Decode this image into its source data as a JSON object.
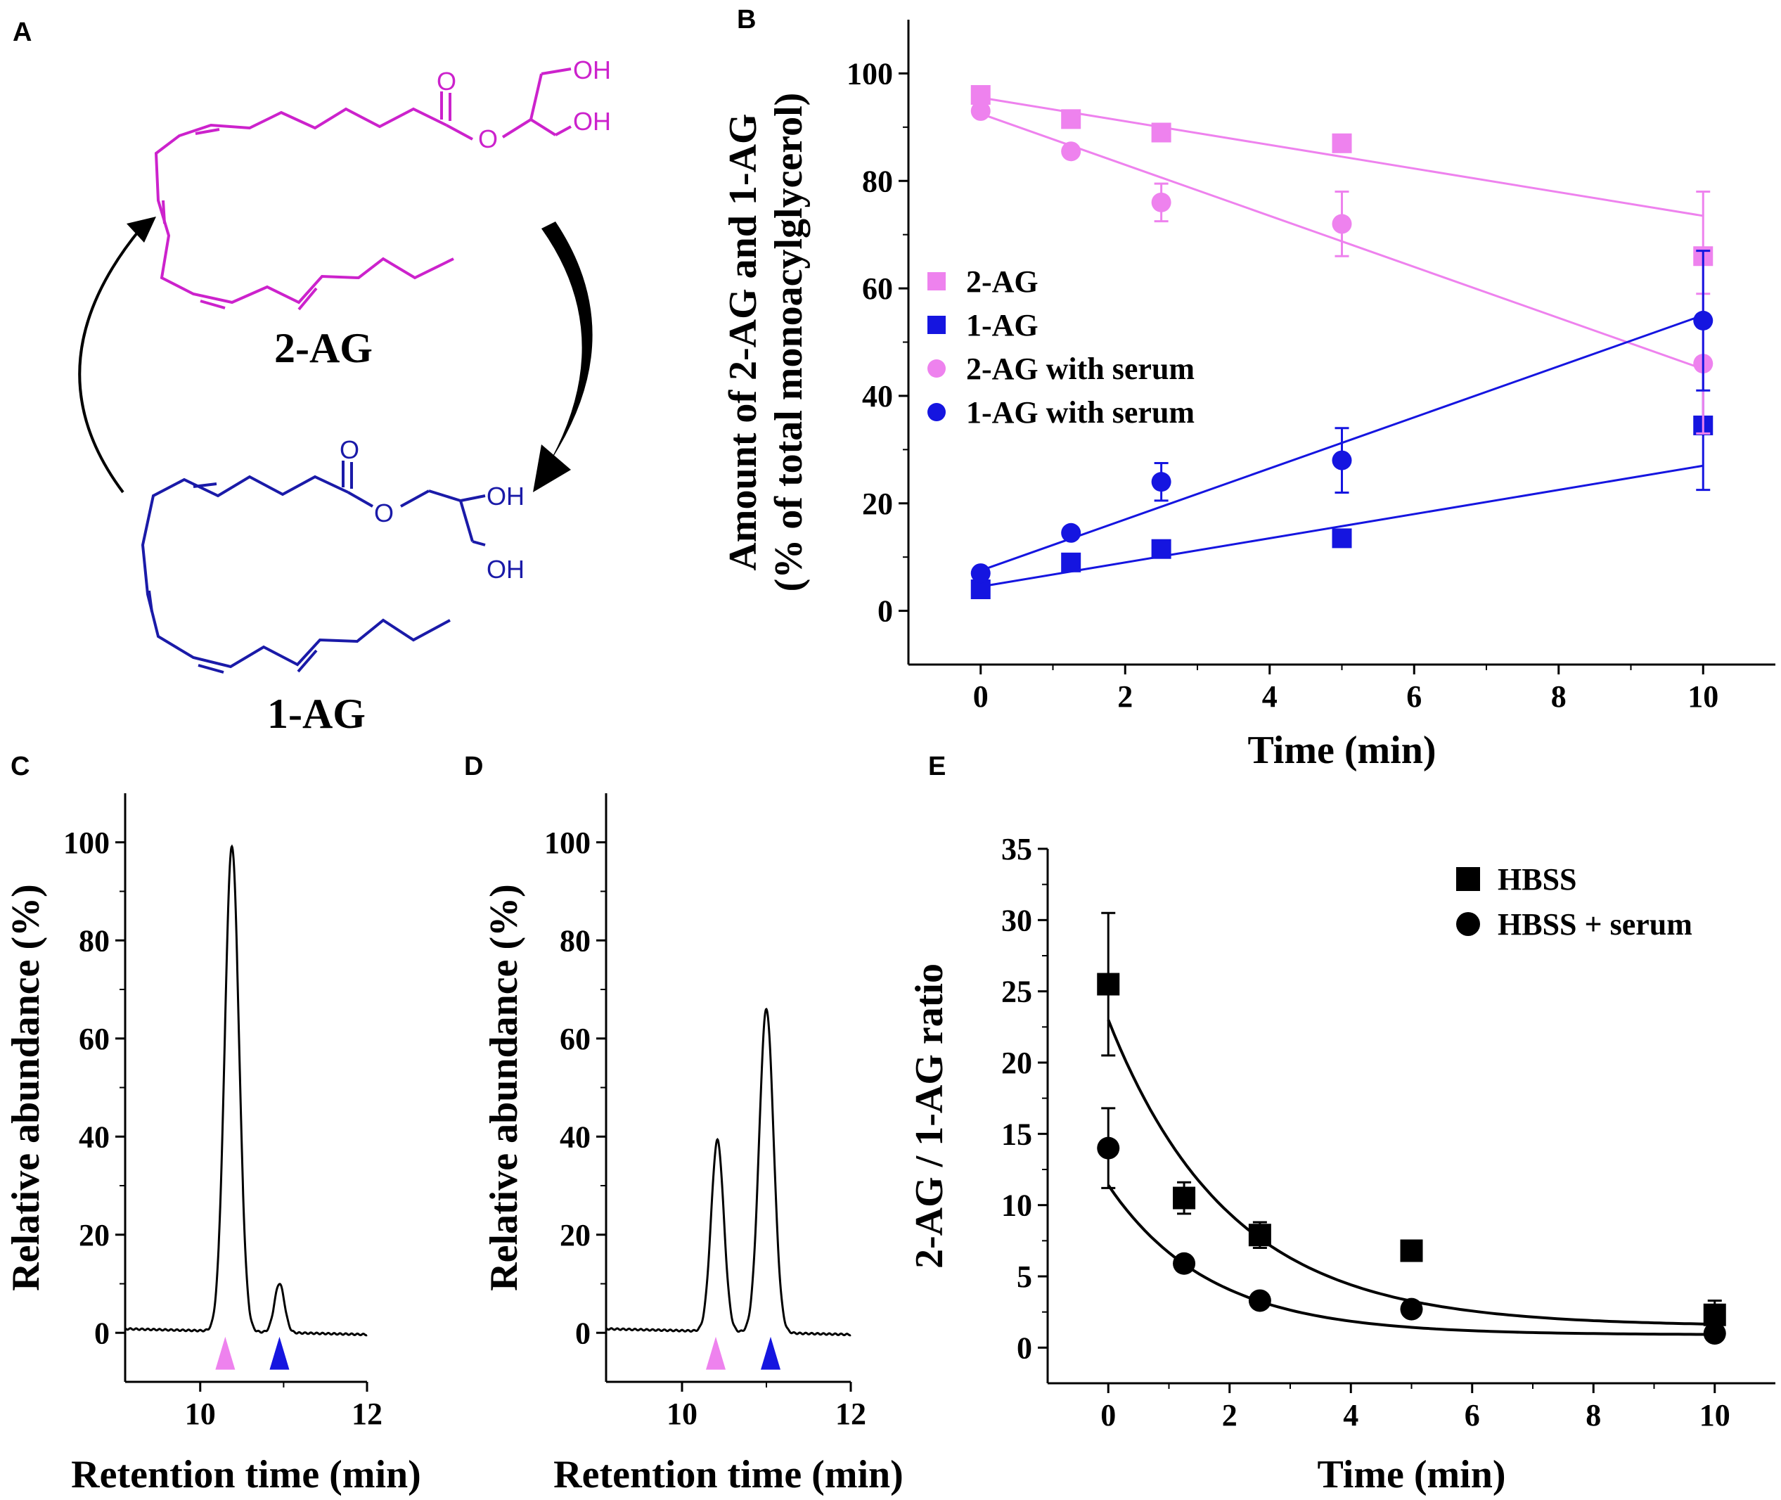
{
  "panels": {
    "A": {
      "letter": "A",
      "molecule_top": {
        "name": "2-AG",
        "color": "#cc22cc",
        "atoms": [
          "O",
          "O",
          "OH",
          "OH"
        ]
      },
      "molecule_bottom": {
        "name": "1-AG",
        "color": "#1a1aa8",
        "atoms": [
          "O",
          "O",
          "OH",
          "OH"
        ]
      }
    },
    "B": {
      "letter": "B"
    },
    "C": {
      "letter": "C"
    },
    "D": {
      "letter": "D"
    },
    "E": {
      "letter": "E"
    }
  },
  "chart_data": [
    {
      "id": "B",
      "type": "scatter",
      "xlabel": "Time (min)",
      "ylabel_lines": [
        "Amount of 2-AG and 1-AG",
        "(% of total monoacylglycerol)"
      ],
      "xlim": [
        -1,
        11
      ],
      "ylim": [
        -10,
        110
      ],
      "xticks": [
        0,
        2,
        4,
        6,
        8,
        10
      ],
      "yticks": [
        0,
        20,
        40,
        60,
        80,
        100
      ],
      "legend_position": "center-left",
      "series": [
        {
          "name": "2-AG",
          "marker": "square",
          "color": "#ee82ee",
          "x": [
            0,
            1.25,
            2.5,
            5,
            10
          ],
          "y": [
            96,
            91.5,
            89,
            87,
            66
          ],
          "err": [
            1,
            1,
            1,
            1,
            12
          ],
          "fit": [
            [
              0,
              95.5
            ],
            [
              10,
              73.5
            ]
          ]
        },
        {
          "name": "1-AG",
          "marker": "square",
          "color": "#1515e0",
          "x": [
            0,
            1.25,
            2.5,
            5,
            10
          ],
          "y": [
            4,
            9,
            11.5,
            13.5,
            34.5
          ],
          "err": [
            1,
            1,
            1,
            1,
            12
          ],
          "fit": [
            [
              0,
              4.5
            ],
            [
              10,
              27
            ]
          ]
        },
        {
          "name": "2-AG with serum",
          "marker": "circle",
          "color": "#ee82ee",
          "x": [
            0,
            1.25,
            2.5,
            5,
            10
          ],
          "y": [
            93,
            85.5,
            76,
            72,
            46
          ],
          "err": [
            1,
            1,
            3.5,
            6,
            13
          ],
          "fit": [
            [
              0,
              92.5
            ],
            [
              10,
              45
            ]
          ]
        },
        {
          "name": "1-AG with serum",
          "marker": "circle",
          "color": "#1515e0",
          "x": [
            0,
            1.25,
            2.5,
            5,
            10
          ],
          "y": [
            7,
            14.5,
            24,
            28,
            54
          ],
          "err": [
            1,
            1,
            3.5,
            6,
            13
          ],
          "fit": [
            [
              0,
              7.5
            ],
            [
              10,
              55
            ]
          ]
        }
      ]
    },
    {
      "id": "C",
      "type": "line",
      "xlabel": "Retention time (min)",
      "ylabel": "Relative abundance (%)",
      "xlim": [
        9.1,
        12
      ],
      "ylim": [
        -10,
        110
      ],
      "xticks": [
        10,
        12
      ],
      "yticks": [
        0,
        20,
        40,
        60,
        80,
        100
      ],
      "baseline": 0.8,
      "peaks": [
        {
          "center": 10.38,
          "height": 99,
          "sigma": 0.085
        },
        {
          "center": 10.95,
          "height": 10,
          "sigma": 0.06
        }
      ],
      "markers": [
        {
          "x": 10.3,
          "color": "#ee82ee"
        },
        {
          "x": 10.95,
          "color": "#1515e0"
        }
      ]
    },
    {
      "id": "D",
      "type": "line",
      "xlabel": "Retention time (min)",
      "ylabel": "Relative abundance (%)",
      "xlim": [
        9.1,
        12
      ],
      "ylim": [
        -10,
        110
      ],
      "xticks": [
        10,
        12
      ],
      "yticks": [
        0,
        20,
        40,
        60,
        80,
        100
      ],
      "baseline": 0.8,
      "peaks": [
        {
          "center": 10.42,
          "height": 39,
          "sigma": 0.075
        },
        {
          "center": 11.0,
          "height": 66,
          "sigma": 0.085
        }
      ],
      "markers": [
        {
          "x": 10.4,
          "color": "#ee82ee"
        },
        {
          "x": 11.05,
          "color": "#1515e0"
        }
      ]
    },
    {
      "id": "E",
      "type": "scatter",
      "xlabel": "Time (min)",
      "ylabel": "2-AG / 1-AG ratio",
      "xlim": [
        -1,
        11
      ],
      "ylim": [
        -2.5,
        35
      ],
      "xticks": [
        0,
        2,
        4,
        6,
        8,
        10
      ],
      "yticks": [
        0,
        5,
        10,
        15,
        20,
        25,
        30,
        35
      ],
      "legend_position": "top-right",
      "series": [
        {
          "name": "HBSS",
          "marker": "square",
          "color": "#000000",
          "x": [
            0,
            1.25,
            2.5,
            5,
            10
          ],
          "y": [
            25.5,
            10.5,
            7.9,
            6.8,
            2.3
          ],
          "err": [
            5,
            1.1,
            0.9,
            0.4,
            1
          ],
          "fit": {
            "a": 21.5,
            "k": 0.5,
            "c": 1.5
          }
        },
        {
          "name": "HBSS + serum",
          "marker": "circle",
          "color": "#000000",
          "x": [
            0,
            1.25,
            2.5,
            5,
            10
          ],
          "y": [
            14,
            5.9,
            3.3,
            2.7,
            1
          ],
          "err": [
            2.8,
            0.4,
            0.4,
            0.4,
            0.3
          ],
          "fit": {
            "a": 10.5,
            "k": 0.6,
            "c": 0.9
          }
        }
      ]
    }
  ]
}
